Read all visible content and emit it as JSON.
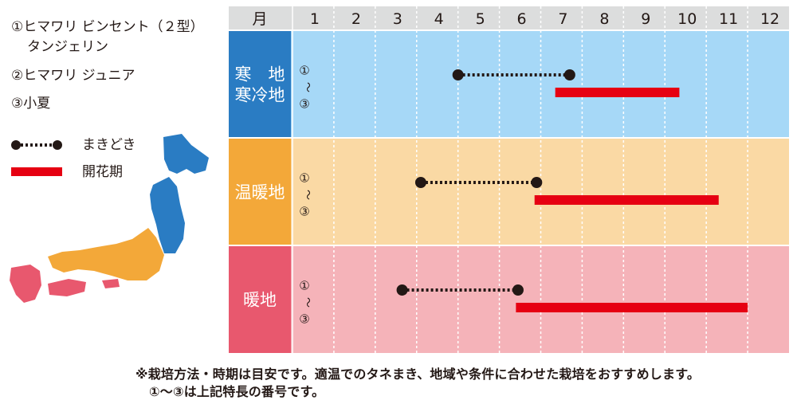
{
  "varieties": [
    "①ヒマワリ ビンセント（２型）",
    "タンジェリン",
    "②ヒマワリ ジュニア",
    "③小夏"
  ],
  "legend": {
    "sowing_label": "まきどき",
    "flowering_label": "開花期"
  },
  "colors": {
    "sowing": "#231815",
    "flowering": "#e60012",
    "cold_label_bg": "#2a7cc3",
    "cold_row_bg": "#a6d8f7",
    "warm_label_bg": "#f3a839",
    "warm_row_bg": "#fad9a4",
    "hot_label_bg": "#e8586e",
    "hot_row_bg": "#f5b3b9",
    "map_north": "#2a7cc3",
    "map_middle": "#f3a839",
    "map_south": "#e8586e"
  },
  "chart_data": {
    "type": "gantt",
    "header_label": "月",
    "months": [
      "1",
      "2",
      "3",
      "4",
      "5",
      "6",
      "7",
      "8",
      "9",
      "10",
      "11",
      "12"
    ],
    "variety_marks": [
      "①",
      "～",
      "③"
    ],
    "regions": [
      {
        "label_lines": [
          "寒　地",
          "寒冷地"
        ],
        "sowing": [
          5,
          7.7
        ],
        "flowering": [
          7.35,
          10.35
        ]
      },
      {
        "label_lines": [
          "温暖地"
        ],
        "sowing": [
          4.1,
          6.9
        ],
        "flowering": [
          6.85,
          11.3
        ]
      },
      {
        "label_lines": [
          "暖地"
        ],
        "sowing": [
          3.65,
          6.45
        ],
        "flowering": [
          6.4,
          12
        ]
      }
    ]
  },
  "notes": [
    "※栽培方法・時期は目安です。適温でのタネまき、地域や条件に合わせた栽培をおすすめします。",
    "①～③は上記特長の番号です。"
  ]
}
